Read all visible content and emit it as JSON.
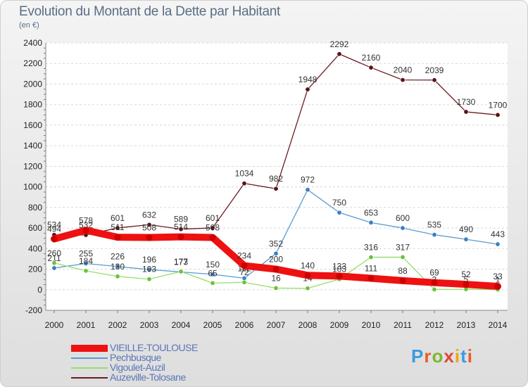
{
  "header": {
    "title": "Evolution du Montant de la Dette par Habitant",
    "subtitle": "(en €)"
  },
  "logo": {
    "text": "Proxiti",
    "letter_colors": [
      "#3b9be0",
      "#e85d2b",
      "#7ab82d",
      "#e3453a",
      "#f0a31a",
      "#3b9be0",
      "#e85d2b"
    ]
  },
  "chart_data": {
    "type": "line",
    "x": [
      2000,
      2001,
      2002,
      2003,
      2004,
      2005,
      2006,
      2007,
      2008,
      2009,
      2010,
      2011,
      2012,
      2013,
      2014
    ],
    "ylim": [
      -200,
      2400
    ],
    "yticks": [
      -200,
      0,
      200,
      400,
      600,
      800,
      1000,
      1200,
      1400,
      1600,
      1800,
      2000,
      2200,
      2400
    ],
    "grid": "horizontal",
    "legend_position": "bottom-left",
    "series": [
      {
        "name": "Auzeville-Tolosane",
        "color": "#6b1c22",
        "dot_color": "#5a1216",
        "width": 1.3,
        "values": [
          534,
          532,
          601,
          632,
          589,
          601,
          1034,
          982,
          1948,
          2292,
          2160,
          2040,
          2039,
          1730,
          1700
        ],
        "labels": [
          "534",
          "532",
          "601",
          "632",
          "589",
          "601",
          "1034",
          "982",
          "1948",
          "2292",
          "2160",
          "2040",
          "2039",
          "1730",
          "1700"
        ]
      },
      {
        "name": "Pechbusque",
        "color": "#5a9bd0",
        "dot_color": "#3d7fc0",
        "width": 1.3,
        "values": [
          211,
          255,
          226,
          196,
          173,
          150,
          112,
          352,
          972,
          750,
          653,
          600,
          535,
          490,
          443
        ],
        "labels": [
          "211",
          "255",
          "226",
          "196",
          "173",
          "150",
          "112",
          "352",
          "972",
          "750",
          "653",
          "600",
          "535",
          "490",
          "443"
        ]
      },
      {
        "name": "Vigoulet-Auzil",
        "color": "#95dd6a",
        "dot_color": "#6bc23c",
        "width": 1.3,
        "values": [
          260,
          184,
          130,
          103,
          177,
          65,
          72,
          16,
          14,
          103,
          316,
          317,
          3,
          5,
          1
        ],
        "labels": [
          "260",
          "184",
          "130",
          "103",
          "177",
          "65",
          "72",
          "16",
          "14",
          "103",
          "316",
          "317",
          "3",
          "5",
          "1"
        ]
      },
      {
        "name": "VIEILLE-TOULOUSE",
        "color": "#ee1111",
        "dot_color": "#cc0000",
        "width": 10,
        "values": [
          494,
          578,
          511,
          508,
          514,
          508,
          234,
          200,
          140,
          133,
          111,
          88,
          69,
          52,
          33
        ],
        "labels": [
          "494",
          "578",
          "511",
          "508",
          "514",
          "508",
          "234",
          "200",
          "140",
          "133",
          "111",
          "88",
          "69",
          "52",
          "33"
        ]
      }
    ],
    "legend_order": [
      "VIEILLE-TOULOUSE",
      "Pechbusque",
      "Vigoulet-Auzil",
      "Auzeville-Tolosane"
    ]
  }
}
